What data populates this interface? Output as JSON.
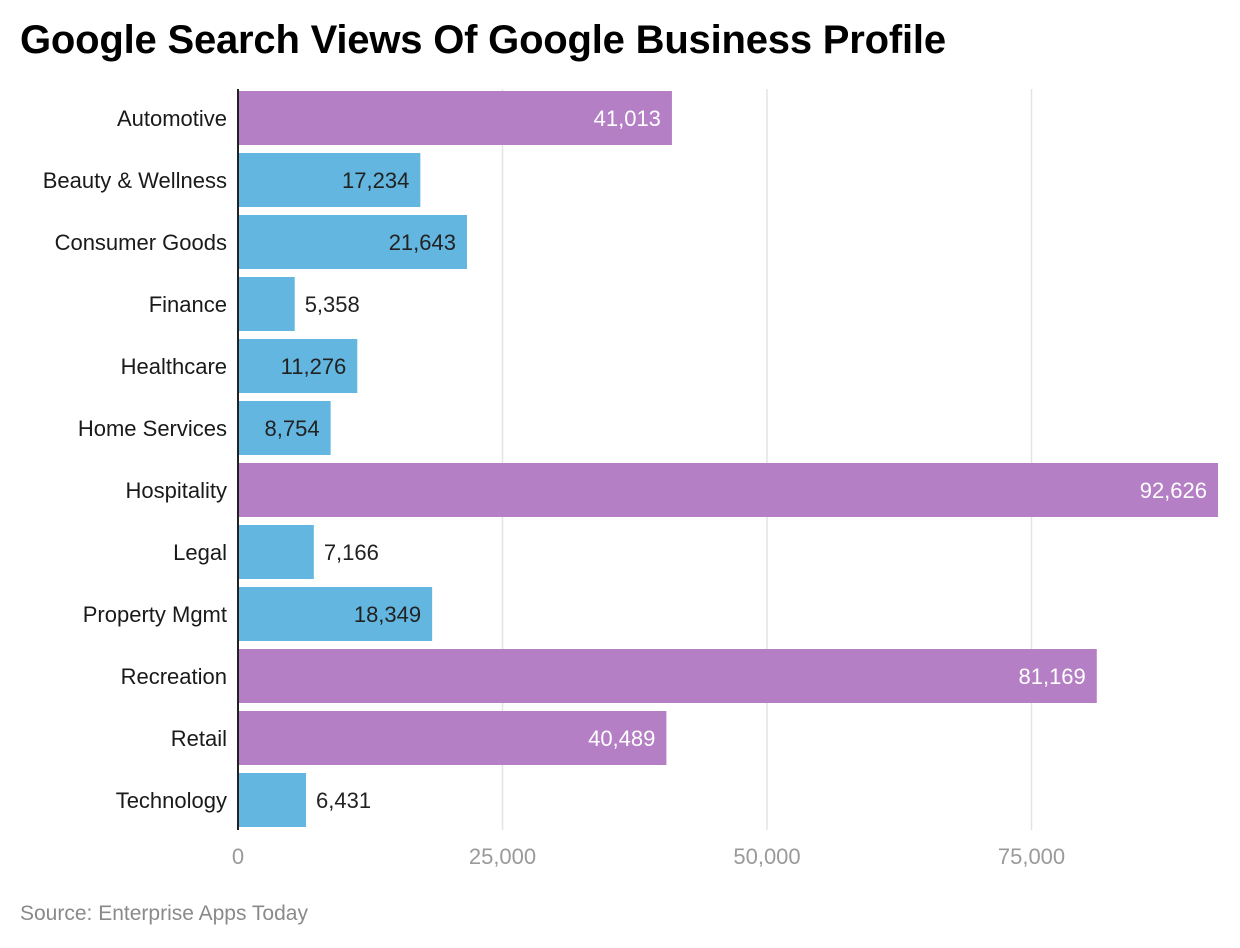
{
  "title": "Google Search Views Of Google Business Profile",
  "source": "Source: Enterprise Apps Today",
  "colors": {
    "highlight": "#b47fc4",
    "normal": "#63b6df",
    "grid": "#e3e3e3",
    "axis": "#222222",
    "label_inside_highlight": "#ffffff",
    "label_default": "#222222"
  },
  "chart_data": {
    "type": "bar",
    "orientation": "horizontal",
    "categories": [
      "Automotive",
      "Beauty & Wellness",
      "Consumer Goods",
      "Finance",
      "Healthcare",
      "Home Services",
      "Hospitality",
      "Legal",
      "Property Mgmt",
      "Recreation",
      "Retail",
      "Technology"
    ],
    "values": [
      41013,
      17234,
      21643,
      5358,
      11276,
      8754,
      92626,
      7166,
      18349,
      81169,
      40489,
      6431
    ],
    "value_labels": [
      "41,013",
      "17,234",
      "21,643",
      "5,358",
      "11,276",
      "8,754",
      "92,626",
      "7,166",
      "18,349",
      "81,169",
      "40,489",
      "6,431"
    ],
    "highlighted": [
      true,
      false,
      false,
      false,
      false,
      false,
      true,
      false,
      false,
      true,
      true,
      false
    ],
    "xticks": [
      0,
      25000,
      50000,
      75000
    ],
    "xtick_labels": [
      "0",
      "25,000",
      "50,000",
      "75,000"
    ],
    "xlim": [
      0,
      92626
    ],
    "grid": true,
    "legend": "none",
    "xlabel": "",
    "ylabel": ""
  }
}
